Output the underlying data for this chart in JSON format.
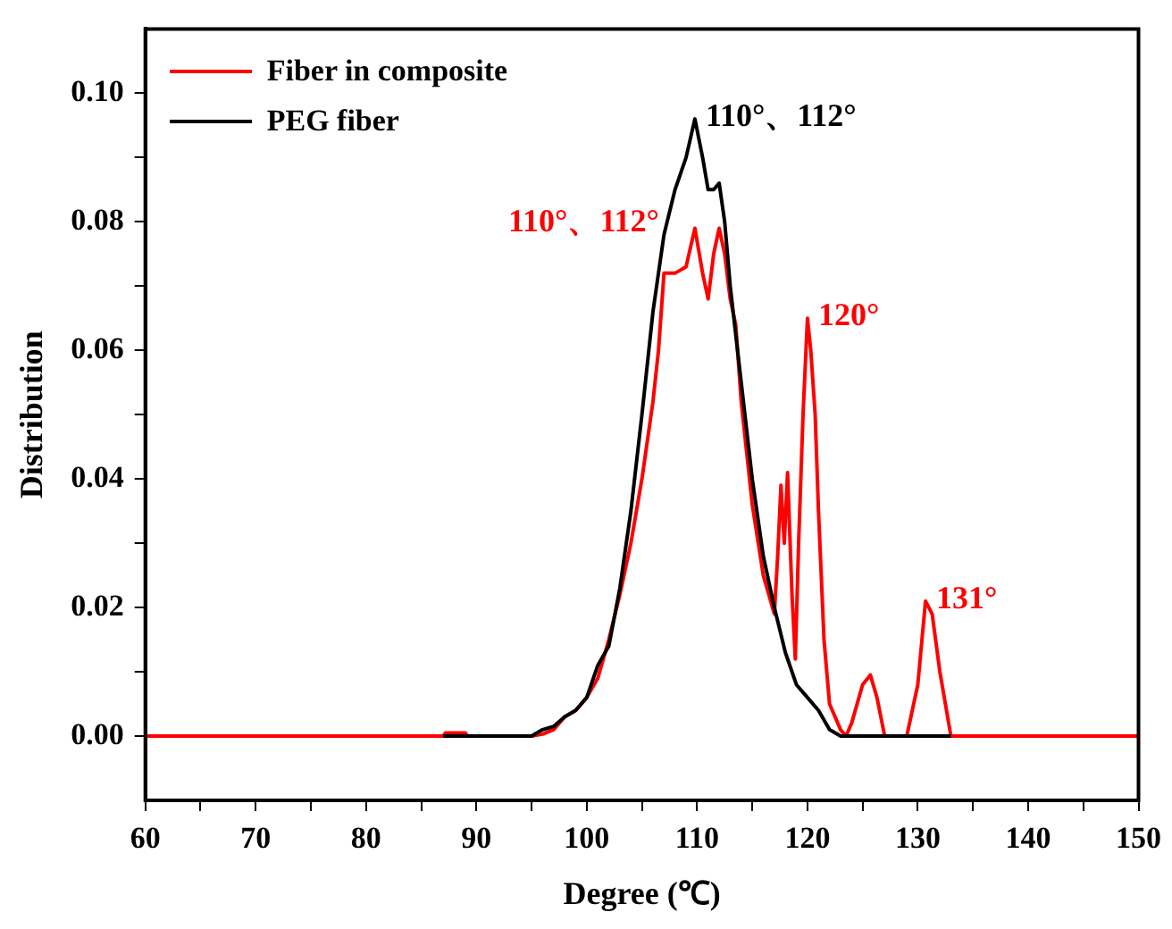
{
  "chart_data": {
    "type": "line",
    "xlabel": "Degree (℃)",
    "ylabel": "Distribution",
    "xlim": [
      60,
      150
    ],
    "ylim": [
      -0.01,
      0.11
    ],
    "xticks": [
      60,
      {
        "value": 65,
        "label": null
      },
      70,
      {
        "value": 75,
        "label": null
      },
      80,
      {
        "value": 85,
        "label": null
      },
      90,
      {
        "value": 95,
        "label": null
      },
      100,
      {
        "value": 105,
        "label": null
      },
      110,
      {
        "value": 115,
        "label": null
      },
      120,
      {
        "value": 125,
        "label": null
      },
      130,
      {
        "value": 135,
        "label": null
      },
      140,
      {
        "value": 145,
        "label": null
      },
      150
    ],
    "yticks": [
      {
        "value": 0,
        "label": "0.00"
      },
      {
        "value": 0.01,
        "label": null
      },
      {
        "value": 0.02,
        "label": "0.02"
      },
      {
        "value": 0.03,
        "label": null
      },
      {
        "value": 0.04,
        "label": "0.04"
      },
      {
        "value": 0.05,
        "label": null
      },
      {
        "value": 0.06,
        "label": "0.06"
      },
      {
        "value": 0.07,
        "label": null
      },
      {
        "value": 0.08,
        "label": "0.08"
      },
      {
        "value": 0.09,
        "label": null
      },
      {
        "value": 0.1,
        "label": "0.10"
      }
    ],
    "grid": false,
    "legend": "top left",
    "marker": "none",
    "line_style": "solid",
    "series": [
      {
        "name": "PEG fiber",
        "color": "#000000",
        "x": [
          87,
          95,
          96,
          97,
          98,
          99,
          100,
          101,
          102,
          103,
          104,
          105,
          106,
          107,
          108,
          109,
          109.8,
          110.5,
          111,
          111.5,
          112,
          112.5,
          113,
          114,
          115,
          116,
          117,
          118,
          119,
          120,
          121,
          122,
          123,
          133
        ],
        "values": [
          0,
          0,
          0.001,
          0.0015,
          0.003,
          0.004,
          0.006,
          0.011,
          0.014,
          0.023,
          0.035,
          0.05,
          0.066,
          0.078,
          0.085,
          0.09,
          0.096,
          0.09,
          0.085,
          0.085,
          0.086,
          0.08,
          0.07,
          0.055,
          0.04,
          0.028,
          0.02,
          0.013,
          0.008,
          0.006,
          0.004,
          0.001,
          0,
          0
        ]
      },
      {
        "name": "Fiber in composite",
        "color": "#ff0000",
        "x": [
          60,
          87,
          87.2,
          89,
          89.2,
          95,
          96,
          97,
          98,
          99,
          100,
          101,
          102,
          103,
          104,
          105,
          106,
          106.5,
          107,
          108,
          109,
          109.8,
          110.5,
          111,
          111.5,
          112,
          112.5,
          113,
          113.5,
          114,
          115,
          116,
          117,
          117.3,
          117.6,
          117.9,
          118.2,
          118.6,
          118.9,
          119.2,
          119.6,
          120,
          120.3,
          120.7,
          121,
          121.5,
          122,
          123,
          123.5,
          124,
          125,
          125.7,
          126.3,
          127,
          129,
          130,
          130.7,
          131.3,
          132,
          133,
          150
        ],
        "values": [
          0,
          0,
          0.0005,
          0.0005,
          0,
          0,
          0.0003,
          0.001,
          0.003,
          0.004,
          0.006,
          0.009,
          0.015,
          0.022,
          0.03,
          0.04,
          0.052,
          0.06,
          0.072,
          0.072,
          0.073,
          0.079,
          0.072,
          0.068,
          0.075,
          0.079,
          0.075,
          0.068,
          0.064,
          0.052,
          0.036,
          0.025,
          0.019,
          0.028,
          0.039,
          0.03,
          0.041,
          0.022,
          0.012,
          0.03,
          0.05,
          0.065,
          0.06,
          0.05,
          0.035,
          0.015,
          0.005,
          0.001,
          0,
          0.002,
          0.008,
          0.0095,
          0.006,
          0,
          0,
          0.008,
          0.021,
          0.019,
          0.01,
          0,
          0
        ]
      }
    ],
    "annotations": [
      {
        "text": "110°、112°",
        "x": 109.8,
        "y": 0.096
      },
      {
        "text": "110°、112°",
        "x": 109.8,
        "y": 0.079
      },
      {
        "text": "120°",
        "x": 120,
        "y": 0.065
      },
      {
        "text": "131°",
        "x": 130.7,
        "y": 0.021
      }
    ]
  }
}
